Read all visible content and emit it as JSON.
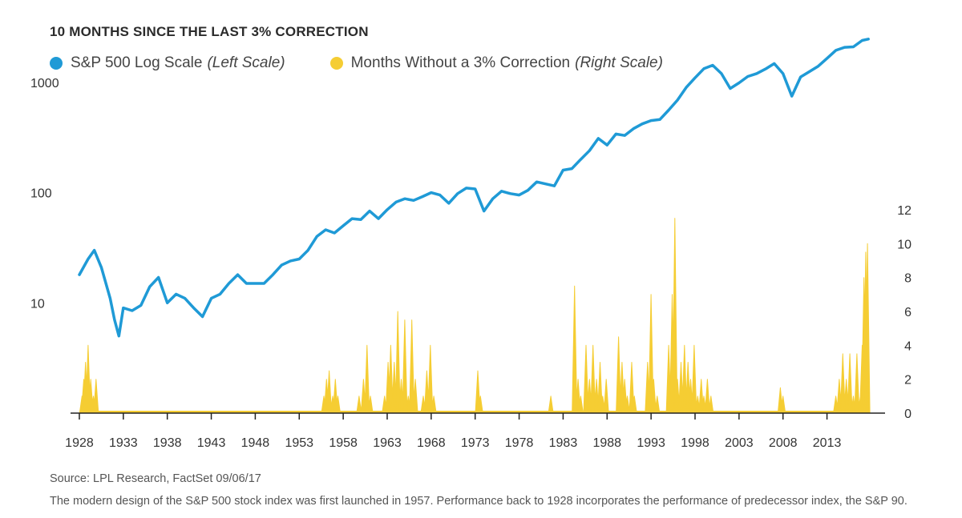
{
  "title": "10 MONTHS SINCE THE LAST 3% CORRECTION",
  "legend": [
    {
      "name": "S&P 500 Log Scale",
      "scale": "(Left Scale)",
      "color": "#1f9ad6"
    },
    {
      "name": "Months Without a 3% Correction",
      "scale": "(Right Scale)",
      "color": "#f5cd33"
    }
  ],
  "source": "Source: LPL Research, FactSet   09/06/17",
  "note": "The modern design of the S&P 500 stock index was first launched in 1957. Performance back to 1928 incorporates the performance of predecessor index, the S&P 90.",
  "chart_data": {
    "type": "line",
    "x_ticks": [
      "1928",
      "1933",
      "1938",
      "1943",
      "1948",
      "1953",
      "1958",
      "1963",
      "1968",
      "1973",
      "1978",
      "1983",
      "1988",
      "1993",
      "1998",
      "2003",
      "2008",
      "2013"
    ],
    "xlim": [
      1927,
      2019.6
    ],
    "left_axis": {
      "scale": "log",
      "ticks": [
        10,
        100,
        1000
      ],
      "ylim": [
        1,
        3162
      ]
    },
    "right_axis": {
      "scale": "linear",
      "ticks": [
        0,
        2,
        4,
        6,
        8,
        10,
        12
      ],
      "ylim": [
        0,
        12
      ]
    },
    "grid": false,
    "legend_position": "top-left",
    "series": [
      {
        "name": "S&P 500 Log Scale",
        "axis": "left",
        "color": "#1f9ad6",
        "points": [
          [
            1928.0,
            18
          ],
          [
            1929.0,
            25
          ],
          [
            1929.7,
            30
          ],
          [
            1930.5,
            21
          ],
          [
            1931.5,
            11
          ],
          [
            1932.0,
            7
          ],
          [
            1932.5,
            5
          ],
          [
            1933.0,
            9
          ],
          [
            1934.0,
            8.5
          ],
          [
            1935.0,
            9.5
          ],
          [
            1936.0,
            14
          ],
          [
            1937.0,
            17
          ],
          [
            1938.0,
            10
          ],
          [
            1939.0,
            12
          ],
          [
            1940.0,
            11
          ],
          [
            1941.0,
            9
          ],
          [
            1942.0,
            7.5
          ],
          [
            1943.0,
            11
          ],
          [
            1944.0,
            12
          ],
          [
            1945.0,
            15
          ],
          [
            1946.0,
            18
          ],
          [
            1947.0,
            15
          ],
          [
            1948.0,
            15
          ],
          [
            1949.0,
            15
          ],
          [
            1950.0,
            18
          ],
          [
            1951.0,
            22
          ],
          [
            1952.0,
            24
          ],
          [
            1953.0,
            25
          ],
          [
            1954.0,
            30
          ],
          [
            1955.0,
            40
          ],
          [
            1956.0,
            46
          ],
          [
            1957.0,
            43
          ],
          [
            1958.0,
            50
          ],
          [
            1959.0,
            58
          ],
          [
            1960.0,
            57
          ],
          [
            1961.0,
            68
          ],
          [
            1962.0,
            58
          ],
          [
            1963.0,
            70
          ],
          [
            1964.0,
            82
          ],
          [
            1965.0,
            88
          ],
          [
            1966.0,
            85
          ],
          [
            1967.0,
            92
          ],
          [
            1968.0,
            100
          ],
          [
            1969.0,
            95
          ],
          [
            1970.0,
            80
          ],
          [
            1971.0,
            98
          ],
          [
            1972.0,
            110
          ],
          [
            1973.0,
            108
          ],
          [
            1974.0,
            68
          ],
          [
            1975.0,
            88
          ],
          [
            1976.0,
            103
          ],
          [
            1977.0,
            98
          ],
          [
            1978.0,
            95
          ],
          [
            1979.0,
            105
          ],
          [
            1980.0,
            125
          ],
          [
            1981.0,
            120
          ],
          [
            1982.0,
            115
          ],
          [
            1983.0,
            160
          ],
          [
            1984.0,
            165
          ],
          [
            1985.0,
            200
          ],
          [
            1986.0,
            240
          ],
          [
            1987.0,
            310
          ],
          [
            1988.0,
            270
          ],
          [
            1989.0,
            340
          ],
          [
            1990.0,
            330
          ],
          [
            1991.0,
            380
          ],
          [
            1992.0,
            420
          ],
          [
            1993.0,
            450
          ],
          [
            1994.0,
            460
          ],
          [
            1995.0,
            560
          ],
          [
            1996.0,
            690
          ],
          [
            1997.0,
            900
          ],
          [
            1998.0,
            1100
          ],
          [
            1999.0,
            1330
          ],
          [
            2000.0,
            1430
          ],
          [
            2001.0,
            1200
          ],
          [
            2002.0,
            880
          ],
          [
            2003.0,
            990
          ],
          [
            2004.0,
            1130
          ],
          [
            2005.0,
            1200
          ],
          [
            2006.0,
            1320
          ],
          [
            2007.0,
            1480
          ],
          [
            2008.0,
            1200
          ],
          [
            2009.0,
            750
          ],
          [
            2010.0,
            1120
          ],
          [
            2011.0,
            1250
          ],
          [
            2012.0,
            1400
          ],
          [
            2013.0,
            1650
          ],
          [
            2014.0,
            1950
          ],
          [
            2015.0,
            2080
          ],
          [
            2016.0,
            2100
          ],
          [
            2017.0,
            2400
          ],
          [
            2017.7,
            2470
          ]
        ]
      },
      {
        "name": "Months Without a 3% Correction",
        "axis": "right",
        "color": "#f5cd33",
        "points": [
          [
            1928.3,
            1
          ],
          [
            1928.5,
            2
          ],
          [
            1928.7,
            3
          ],
          [
            1929.0,
            4
          ],
          [
            1929.3,
            2
          ],
          [
            1929.6,
            1
          ],
          [
            1929.9,
            2
          ],
          [
            1955.8,
            1
          ],
          [
            1956.1,
            2
          ],
          [
            1956.4,
            2.5
          ],
          [
            1956.8,
            1
          ],
          [
            1957.1,
            2
          ],
          [
            1957.4,
            1
          ],
          [
            1959.8,
            1
          ],
          [
            1960.3,
            2
          ],
          [
            1960.7,
            4
          ],
          [
            1961.1,
            1
          ],
          [
            1962.7,
            1
          ],
          [
            1963.1,
            3
          ],
          [
            1963.4,
            4
          ],
          [
            1963.8,
            3
          ],
          [
            1964.2,
            6
          ],
          [
            1964.6,
            2
          ],
          [
            1965.0,
            5.5
          ],
          [
            1965.4,
            1
          ],
          [
            1965.8,
            5.5
          ],
          [
            1966.2,
            2
          ],
          [
            1967.1,
            1
          ],
          [
            1967.5,
            2.5
          ],
          [
            1967.9,
            4
          ],
          [
            1968.3,
            1
          ],
          [
            1973.3,
            2.5
          ],
          [
            1973.6,
            1
          ],
          [
            1981.6,
            1
          ],
          [
            1984.3,
            7.5
          ],
          [
            1984.7,
            2
          ],
          [
            1985.0,
            1
          ],
          [
            1985.6,
            4
          ],
          [
            1986.0,
            2
          ],
          [
            1986.4,
            4
          ],
          [
            1986.8,
            2
          ],
          [
            1987.2,
            3
          ],
          [
            1987.5,
            1
          ],
          [
            1987.9,
            2
          ],
          [
            1989.3,
            4.5
          ],
          [
            1989.7,
            3
          ],
          [
            1990.0,
            2
          ],
          [
            1990.3,
            1
          ],
          [
            1990.8,
            3
          ],
          [
            1991.1,
            1
          ],
          [
            1992.6,
            3
          ],
          [
            1993.0,
            7
          ],
          [
            1993.3,
            2
          ],
          [
            1993.7,
            1
          ],
          [
            1995.0,
            4
          ],
          [
            1995.4,
            7
          ],
          [
            1995.7,
            11.5
          ],
          [
            1996.0,
            2
          ],
          [
            1996.4,
            3
          ],
          [
            1996.8,
            4
          ],
          [
            1997.2,
            3
          ],
          [
            1997.5,
            2
          ],
          [
            1997.9,
            4
          ],
          [
            1998.3,
            1
          ],
          [
            1998.7,
            2
          ],
          [
            1999.0,
            1
          ],
          [
            1999.4,
            2
          ],
          [
            1999.8,
            1
          ],
          [
            2007.7,
            1.5
          ],
          [
            2008.0,
            1
          ],
          [
            2014.0,
            1
          ],
          [
            2014.4,
            2
          ],
          [
            2014.8,
            3.5
          ],
          [
            2015.2,
            2
          ],
          [
            2015.6,
            3.5
          ],
          [
            2016.0,
            1
          ],
          [
            2016.4,
            3.5
          ],
          [
            2016.8,
            1
          ],
          [
            2017.0,
            4
          ],
          [
            2017.2,
            8
          ],
          [
            2017.4,
            9.5
          ],
          [
            2017.6,
            10
          ]
        ]
      }
    ]
  }
}
